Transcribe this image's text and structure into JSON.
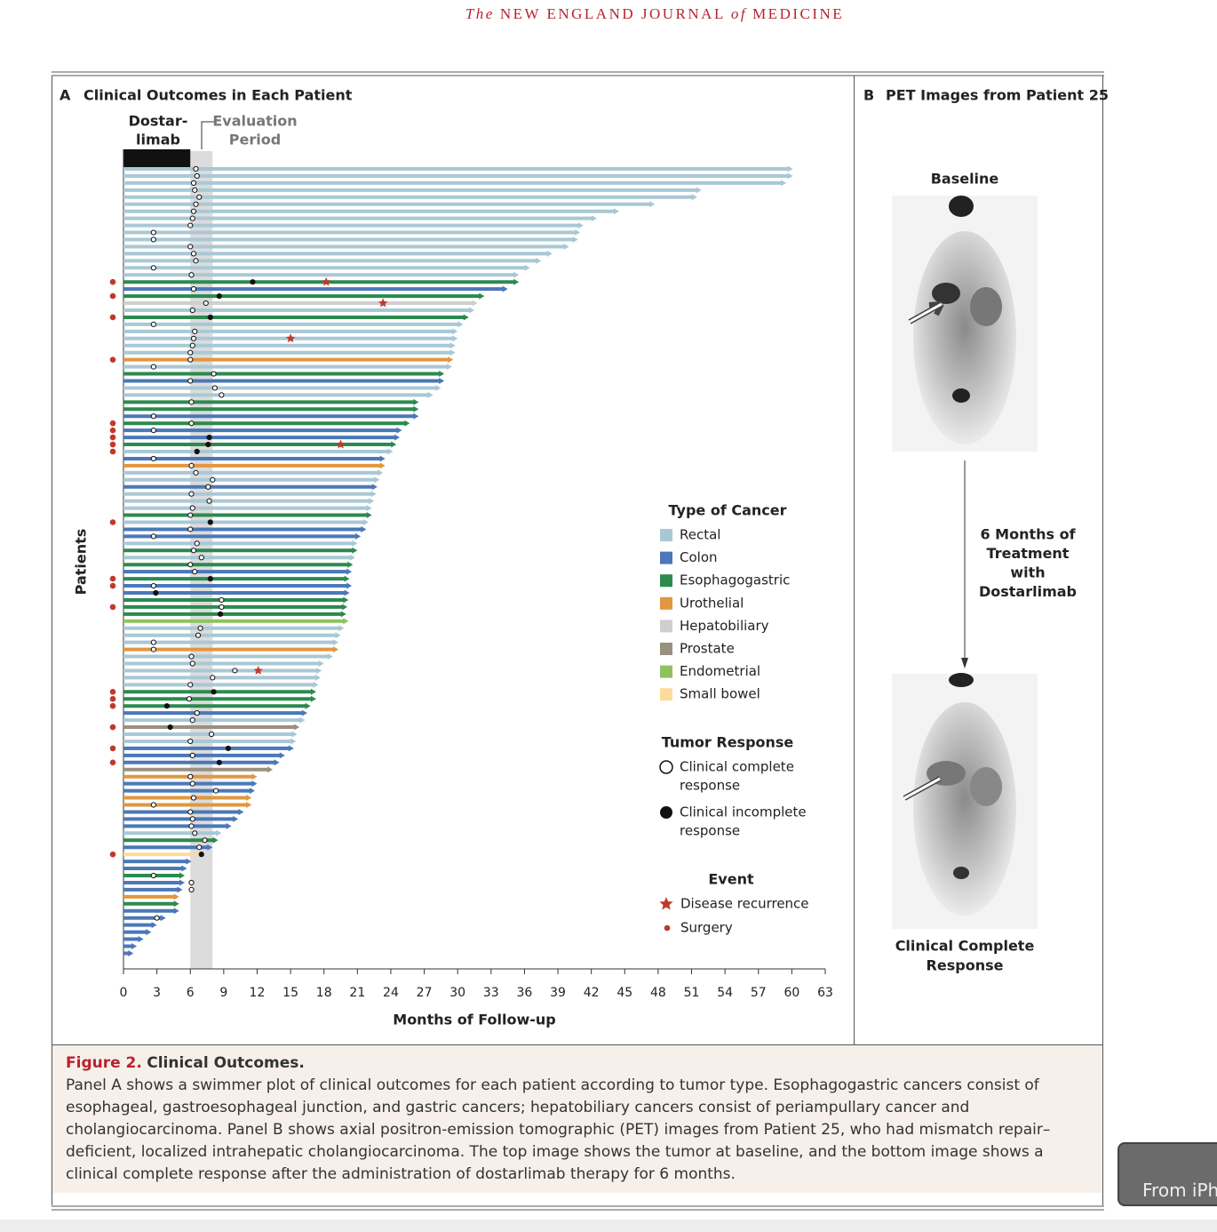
{
  "header": {
    "journal": [
      "The",
      "NEW ENGLAND JOURNAL",
      "of",
      "MEDICINE"
    ]
  },
  "chart_data": {
    "type": "swimmer",
    "panel_label": "A",
    "title": "Clinical Outcomes in Each Patient",
    "treatment_label": [
      "Dostar-",
      "limab"
    ],
    "evaluation_label": [
      "Evaluation",
      "Period"
    ],
    "treatment_period": [
      0,
      6
    ],
    "evaluation_period": [
      6,
      8
    ],
    "y_label": "Patients",
    "x_label": "Months of Follow-up",
    "xlim": [
      0,
      63
    ],
    "xticks": [
      0,
      3,
      6,
      9,
      12,
      15,
      18,
      21,
      24,
      27,
      30,
      33,
      36,
      39,
      42,
      45,
      48,
      51,
      54,
      57,
      60,
      63
    ],
    "cancer_legend_title": "Type of Cancer",
    "cancer_types": [
      {
        "name": "Rectal",
        "color": "#a9c8d6"
      },
      {
        "name": "Colon",
        "color": "#4a78b8"
      },
      {
        "name": "Esophagogastric",
        "color": "#2b8a4e"
      },
      {
        "name": "Urothelial",
        "color": "#e0973f"
      },
      {
        "name": "Hepatobiliary",
        "color": "#cfcfcf"
      },
      {
        "name": "Prostate",
        "color": "#9a9080"
      },
      {
        "name": "Endometrial",
        "color": "#8dc35f"
      },
      {
        "name": "Small bowel",
        "color": "#fbdc9c"
      }
    ],
    "response_legend_title": "Tumor Response",
    "response_complete_label": [
      "Clinical complete",
      "response"
    ],
    "response_incomplete_label": [
      "Clinical incomplete",
      "response"
    ],
    "event_legend_title": "Event",
    "recurrence_label": "Disease recurrence",
    "surgery_label": "Surgery",
    "patients": [
      {
        "cancer": "Rectal",
        "months": 60.1,
        "response_month": 6.5,
        "complete": true
      },
      {
        "cancer": "Rectal",
        "months": 60.1,
        "response_month": 6.6,
        "complete": true
      },
      {
        "cancer": "Rectal",
        "months": 59.5,
        "response_month": 6.3,
        "complete": true
      },
      {
        "cancer": "Rectal",
        "months": 51.9,
        "response_month": 6.4,
        "complete": true
      },
      {
        "cancer": "Rectal",
        "months": 51.5,
        "response_month": 6.8,
        "complete": true
      },
      {
        "cancer": "Rectal",
        "months": 47.7,
        "response_month": 6.5,
        "complete": true
      },
      {
        "cancer": "Rectal",
        "months": 44.5,
        "response_month": 6.3,
        "complete": true
      },
      {
        "cancer": "Rectal",
        "months": 42.5,
        "response_month": 6.2,
        "complete": true
      },
      {
        "cancer": "Rectal",
        "months": 41.3,
        "response_month": 6.0,
        "complete": true
      },
      {
        "cancer": "Rectal",
        "months": 41.0,
        "response_month": 2.7,
        "complete": true
      },
      {
        "cancer": "Rectal",
        "months": 40.8,
        "response_month": 2.7,
        "complete": true
      },
      {
        "cancer": "Rectal",
        "months": 40.0,
        "response_month": 6.0,
        "complete": true
      },
      {
        "cancer": "Rectal",
        "months": 38.5,
        "response_month": 6.3,
        "complete": true
      },
      {
        "cancer": "Rectal",
        "months": 37.5,
        "response_month": 6.5,
        "complete": true
      },
      {
        "cancer": "Rectal",
        "months": 36.5,
        "response_month": 2.7,
        "complete": true
      },
      {
        "cancer": "Rectal",
        "months": 35.5,
        "response_month": 6.1,
        "complete": true
      },
      {
        "cancer": "Esophagogastric",
        "months": 35.5,
        "response_month": 11.6,
        "complete": false,
        "surgery": true,
        "recurrence": 18.2
      },
      {
        "cancer": "Colon",
        "months": 34.5,
        "response_month": 6.3,
        "complete": true
      },
      {
        "cancer": "Esophagogastric",
        "months": 32.4,
        "response_month": 8.6,
        "complete": false,
        "surgery": true
      },
      {
        "cancer": "Hepatobiliary",
        "months": 31.8,
        "response_month": 7.4,
        "complete": true,
        "recurrence": 23.3
      },
      {
        "cancer": "Rectal",
        "months": 31.5,
        "response_month": 6.2,
        "complete": true
      },
      {
        "cancer": "Esophagogastric",
        "months": 31.0,
        "response_month": 7.8,
        "complete": false,
        "surgery": true
      },
      {
        "cancer": "Rectal",
        "months": 30.5,
        "response_month": 2.7,
        "complete": true
      },
      {
        "cancer": "Rectal",
        "months": 30.0,
        "response_month": 6.4,
        "complete": true
      },
      {
        "cancer": "Rectal",
        "months": 30.0,
        "response_month": 6.3,
        "complete": true,
        "recurrence": 15.0
      },
      {
        "cancer": "Rectal",
        "months": 29.8,
        "response_month": 6.2,
        "complete": true
      },
      {
        "cancer": "Rectal",
        "months": 29.8,
        "response_month": 6.0,
        "complete": true
      },
      {
        "cancer": "Urothelial",
        "months": 29.6,
        "response_month": 6.0,
        "complete": true,
        "surgery": true
      },
      {
        "cancer": "Rectal",
        "months": 29.5,
        "response_month": 2.7,
        "complete": true
      },
      {
        "cancer": "Esophagogastric",
        "months": 28.8,
        "response_month": 8.1,
        "complete": true
      },
      {
        "cancer": "Colon",
        "months": 28.8,
        "response_month": 6.0,
        "complete": true
      },
      {
        "cancer": "Rectal",
        "months": 28.5,
        "response_month": 8.2,
        "complete": true
      },
      {
        "cancer": "Rectal",
        "months": 27.8,
        "response_month": 8.8,
        "complete": true
      },
      {
        "cancer": "Esophagogastric",
        "months": 26.5,
        "response_month": 6.1,
        "complete": true
      },
      {
        "cancer": "Esophagogastric",
        "months": 26.5
      },
      {
        "cancer": "Colon",
        "months": 26.5,
        "response_month": 2.7,
        "complete": true
      },
      {
        "cancer": "Esophagogastric",
        "months": 25.7,
        "response_month": 6.1,
        "complete": true,
        "surgery": true
      },
      {
        "cancer": "Colon",
        "months": 25.0,
        "response_month": 2.7,
        "complete": true,
        "surgery": true
      },
      {
        "cancer": "Colon",
        "months": 24.8,
        "response_month": 7.7,
        "complete": false,
        "surgery": true
      },
      {
        "cancer": "Esophagogastric",
        "months": 24.5,
        "response_month": 7.6,
        "complete": false,
        "surgery": true,
        "recurrence": 19.5
      },
      {
        "cancer": "Rectal",
        "months": 24.2,
        "response_month": 6.6,
        "complete": false,
        "surgery": true
      },
      {
        "cancer": "Colon",
        "months": 23.5,
        "response_month": 2.7,
        "complete": true
      },
      {
        "cancer": "Urothelial",
        "months": 23.5,
        "response_month": 6.1,
        "complete": true
      },
      {
        "cancer": "Rectal",
        "months": 23.3,
        "response_month": 6.5,
        "complete": true
      },
      {
        "cancer": "Rectal",
        "months": 23.0,
        "response_month": 8.0,
        "complete": true
      },
      {
        "cancer": "Colon",
        "months": 22.8,
        "response_month": 7.6,
        "complete": true
      },
      {
        "cancer": "Rectal",
        "months": 22.7,
        "response_month": 6.1,
        "complete": true
      },
      {
        "cancer": "Rectal",
        "months": 22.5,
        "response_month": 7.7,
        "complete": true
      },
      {
        "cancer": "Rectal",
        "months": 22.3,
        "response_month": 6.2,
        "complete": true
      },
      {
        "cancer": "Esophagogastric",
        "months": 22.3,
        "response_month": 6.0,
        "complete": true
      },
      {
        "cancer": "Rectal",
        "months": 22.0,
        "response_month": 7.8,
        "complete": false,
        "surgery": true
      },
      {
        "cancer": "Colon",
        "months": 21.8,
        "response_month": 6.0,
        "complete": true
      },
      {
        "cancer": "Colon",
        "months": 21.3,
        "response_month": 2.7,
        "complete": true
      },
      {
        "cancer": "Rectal",
        "months": 21.0,
        "response_month": 6.6,
        "complete": true
      },
      {
        "cancer": "Esophagogastric",
        "months": 21.0,
        "response_month": 6.3,
        "complete": true
      },
      {
        "cancer": "Rectal",
        "months": 20.8,
        "response_month": 7.0,
        "complete": true
      },
      {
        "cancer": "Esophagogastric",
        "months": 20.6,
        "response_month": 6.0,
        "complete": true
      },
      {
        "cancer": "Colon",
        "months": 20.5,
        "response_month": 6.4,
        "complete": true
      },
      {
        "cancer": "Esophagogastric",
        "months": 20.3,
        "response_month": 7.8,
        "complete": false,
        "surgery": true
      },
      {
        "cancer": "Colon",
        "months": 20.5,
        "response_month": 2.7,
        "complete": true,
        "surgery": true
      },
      {
        "cancer": "Colon",
        "months": 20.3,
        "response_month": 2.9,
        "complete": false
      },
      {
        "cancer": "Esophagogastric",
        "months": 20.2,
        "response_month": 8.8,
        "complete": true
      },
      {
        "cancer": "Esophagogastric",
        "months": 20.1,
        "response_month": 8.8,
        "complete": true,
        "surgery": true
      },
      {
        "cancer": "Esophagogastric",
        "months": 20.0,
        "response_month": 8.7,
        "complete": false
      },
      {
        "cancer": "Endometrial",
        "months": 20.2
      },
      {
        "cancer": "Rectal",
        "months": 19.8,
        "response_month": 6.9,
        "complete": true
      },
      {
        "cancer": "Rectal",
        "months": 19.5,
        "response_month": 6.7,
        "complete": true
      },
      {
        "cancer": "Rectal",
        "months": 19.3,
        "response_month": 2.7,
        "complete": true
      },
      {
        "cancer": "Urothelial",
        "months": 19.3,
        "response_month": 2.7,
        "complete": true
      },
      {
        "cancer": "Rectal",
        "months": 18.8,
        "response_month": 6.1,
        "complete": true
      },
      {
        "cancer": "Rectal",
        "months": 18.0,
        "response_month": 6.2,
        "complete": true
      },
      {
        "cancer": "Rectal",
        "months": 17.8,
        "response_month": 10.0,
        "complete": true,
        "recurrence": 12.1
      },
      {
        "cancer": "Rectal",
        "months": 17.7,
        "response_month": 8.0,
        "complete": true
      },
      {
        "cancer": "Rectal",
        "months": 17.5,
        "response_month": 6.0,
        "complete": true
      },
      {
        "cancer": "Esophagogastric",
        "months": 17.3,
        "response_month": 8.1,
        "complete": false,
        "surgery": true
      },
      {
        "cancer": "Esophagogastric",
        "months": 17.3,
        "response_month": 5.9,
        "complete": true,
        "surgery": true
      },
      {
        "cancer": "Esophagogastric",
        "months": 16.8,
        "response_month": 3.9,
        "complete": false,
        "surgery": true
      },
      {
        "cancer": "Colon",
        "months": 16.5,
        "response_month": 6.6,
        "complete": true
      },
      {
        "cancer": "Rectal",
        "months": 16.3,
        "response_month": 6.2,
        "complete": true
      },
      {
        "cancer": "Prostate",
        "months": 15.8,
        "response_month": 4.2,
        "complete": false,
        "surgery": true
      },
      {
        "cancer": "Rectal",
        "months": 15.6,
        "response_month": 7.9,
        "complete": true
      },
      {
        "cancer": "Rectal",
        "months": 15.5,
        "response_month": 6.0,
        "complete": true
      },
      {
        "cancer": "Colon",
        "months": 15.3,
        "response_month": 9.4,
        "complete": false,
        "surgery": true
      },
      {
        "cancer": "Colon",
        "months": 14.5,
        "response_month": 6.2,
        "complete": true
      },
      {
        "cancer": "Colon",
        "months": 14.0,
        "response_month": 8.6,
        "complete": false,
        "surgery": true
      },
      {
        "cancer": "Prostate",
        "months": 13.4
      },
      {
        "cancer": "Urothelial",
        "months": 12.0,
        "response_month": 6.0,
        "complete": true
      },
      {
        "cancer": "Colon",
        "months": 12.0,
        "response_month": 6.2,
        "complete": true
      },
      {
        "cancer": "Colon",
        "months": 11.8,
        "response_month": 8.3,
        "complete": true
      },
      {
        "cancer": "Urothelial",
        "months": 11.5,
        "response_month": 6.3,
        "complete": true
      },
      {
        "cancer": "Urothelial",
        "months": 11.5,
        "response_month": 2.7,
        "complete": true
      },
      {
        "cancer": "Colon",
        "months": 10.8,
        "response_month": 6.0,
        "complete": true
      },
      {
        "cancer": "Colon",
        "months": 10.3,
        "response_month": 6.2,
        "complete": true
      },
      {
        "cancer": "Colon",
        "months": 9.7,
        "response_month": 6.1,
        "complete": true
      },
      {
        "cancer": "Rectal",
        "months": 8.8,
        "response_month": 6.4,
        "complete": true
      },
      {
        "cancer": "Esophagogastric",
        "months": 8.5,
        "response_month": 7.3,
        "complete": true
      },
      {
        "cancer": "Colon",
        "months": 8.0,
        "response_month": 6.8,
        "complete": true
      },
      {
        "cancer": "Small bowel",
        "months": 7.3,
        "response_month": 7.0,
        "complete": false,
        "surgery": true
      },
      {
        "cancer": "Colon",
        "months": 6.1
      },
      {
        "cancer": "Colon",
        "months": 5.7
      },
      {
        "cancer": "Esophagogastric",
        "months": 5.5,
        "response_month": 2.7,
        "complete": true
      },
      {
        "cancer": "Colon",
        "months": 5.5,
        "response_month": 6.1,
        "complete": true
      },
      {
        "cancer": "Colon",
        "months": 5.3,
        "response_month": 6.1,
        "complete": true
      },
      {
        "cancer": "Urothelial",
        "months": 5.0
      },
      {
        "cancer": "Esophagogastric",
        "months": 5.0
      },
      {
        "cancer": "Colon",
        "months": 5.0
      },
      {
        "cancer": "Colon",
        "months": 3.8,
        "response_month": 3.0,
        "complete": true
      },
      {
        "cancer": "Colon",
        "months": 3.0
      },
      {
        "cancer": "Colon",
        "months": 2.5
      },
      {
        "cancer": "Colon",
        "months": 1.8
      },
      {
        "cancer": "Colon",
        "months": 1.2
      },
      {
        "cancer": "Colon",
        "months": 0.9
      }
    ]
  },
  "panel_b": {
    "label": "B",
    "title": "PET Images from Patient 25",
    "baseline": "Baseline",
    "treatment_note": [
      "6 Months of",
      "Treatment",
      "with",
      "Dostarlimab"
    ],
    "result": [
      "Clinical Complete",
      "Response"
    ]
  },
  "caption": {
    "label": "Figure 2.",
    "title": "Clinical Outcomes.",
    "text": "Panel A shows a swimmer plot of clinical outcomes for each patient according to tumor type. Esophagogastric cancers consist of esophageal, gastroesophageal junction, and gastric cancers; hepatobiliary cancers consist of periampullary cancer and cholangiocarcinoma. Panel B shows axial positron-emission tomographic (PET) images from Patient 25, who had mismatch repair–deficient, localized intrahepatic cholangiocarcinoma. The top image shows the tumor at baseline, and the bottom image shows a clinical complete response after the administration of dostarlimab therapy for 6 months."
  },
  "overlay": {
    "button": "From iPhone"
  }
}
